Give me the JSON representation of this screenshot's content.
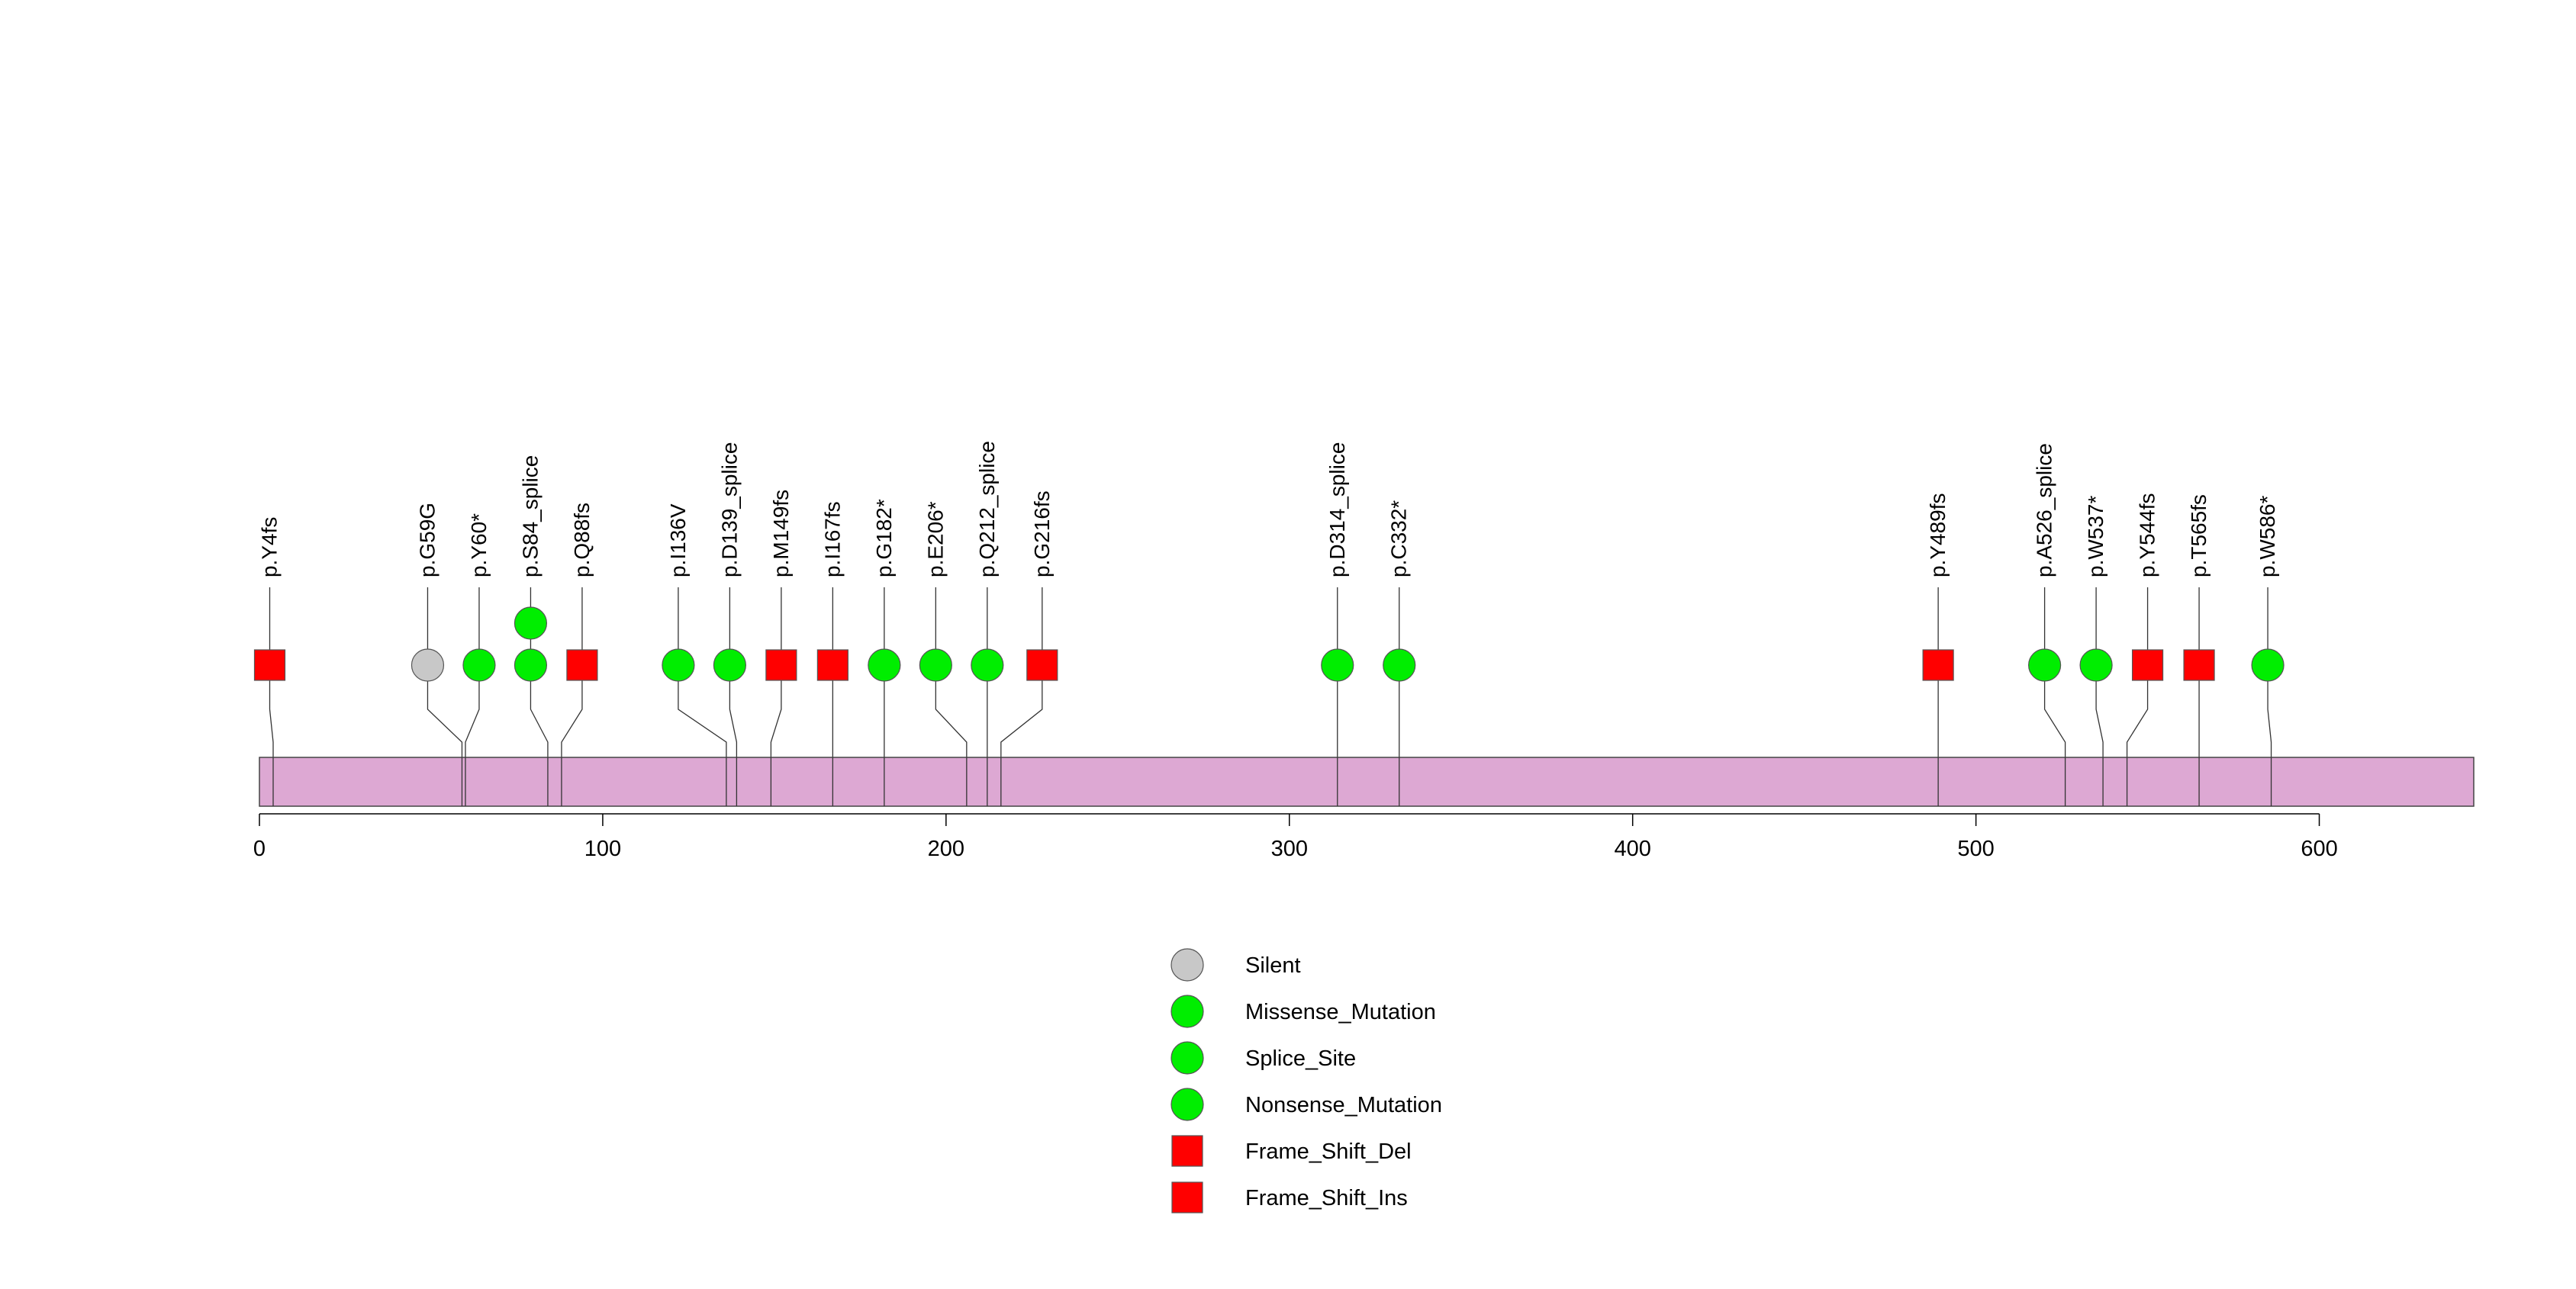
{
  "chart_data": {
    "type": "lollipop",
    "title": "",
    "xlabel": "",
    "ylabel": "",
    "xlim": [
      0,
      645
    ],
    "protein_length": 645,
    "x_ticks": [
      0,
      100,
      200,
      300,
      400,
      500,
      600
    ],
    "x_tick_labels": [
      "0",
      "100",
      "200",
      "300",
      "400",
      "500",
      "600"
    ],
    "grid": false,
    "legend_position": "bottom-center",
    "domain_color": "#dda8d3",
    "mutation_types": [
      {
        "name": "Silent",
        "shape": "circle",
        "color": "#c8c8c8"
      },
      {
        "name": "Missense_Mutation",
        "shape": "circle",
        "color": "#00ee00"
      },
      {
        "name": "Splice_Site",
        "shape": "circle",
        "color": "#00ee00"
      },
      {
        "name": "Nonsense_Mutation",
        "shape": "circle",
        "color": "#00ee00"
      },
      {
        "name": "Frame_Shift_Del",
        "shape": "square",
        "color": "#ff0000"
      },
      {
        "name": "Frame_Shift_Ins",
        "shape": "square",
        "color": "#ff0000"
      }
    ],
    "mutations": [
      {
        "label": "p.Y4fs",
        "position": 4,
        "display_position": 3,
        "count": 1,
        "type": "Frame_Shift_Del"
      },
      {
        "label": "p.G59G",
        "position": 59,
        "display_position": 49,
        "count": 1,
        "type": "Silent"
      },
      {
        "label": "p.Y60*",
        "position": 60,
        "display_position": 64,
        "count": 1,
        "type": "Nonsense_Mutation"
      },
      {
        "label": "p.S84_splice",
        "position": 84,
        "display_position": 79,
        "count": 2,
        "type": "Splice_Site"
      },
      {
        "label": "p.Q88fs",
        "position": 88,
        "display_position": 94,
        "count": 1,
        "type": "Frame_Shift_Del"
      },
      {
        "label": "p.I136V",
        "position": 136,
        "display_position": 122,
        "count": 1,
        "type": "Missense_Mutation"
      },
      {
        "label": "p.D139_splice",
        "position": 139,
        "display_position": 137,
        "count": 1,
        "type": "Splice_Site"
      },
      {
        "label": "p.M149fs",
        "position": 149,
        "display_position": 152,
        "count": 1,
        "type": "Frame_Shift_Ins"
      },
      {
        "label": "p.I167fs",
        "position": 167,
        "display_position": 167,
        "count": 1,
        "type": "Frame_Shift_Del"
      },
      {
        "label": "p.G182*",
        "position": 182,
        "display_position": 182,
        "count": 1,
        "type": "Nonsense_Mutation"
      },
      {
        "label": "p.E206*",
        "position": 206,
        "display_position": 197,
        "count": 1,
        "type": "Nonsense_Mutation"
      },
      {
        "label": "p.Q212_splice",
        "position": 212,
        "display_position": 212,
        "count": 1,
        "type": "Splice_Site"
      },
      {
        "label": "p.G216fs",
        "position": 216,
        "display_position": 228,
        "count": 1,
        "type": "Frame_Shift_Del"
      },
      {
        "label": "p.D314_splice",
        "position": 314,
        "display_position": 314,
        "count": 1,
        "type": "Splice_Site"
      },
      {
        "label": "p.C332*",
        "position": 332,
        "display_position": 332,
        "count": 1,
        "type": "Nonsense_Mutation"
      },
      {
        "label": "p.Y489fs",
        "position": 489,
        "display_position": 489,
        "count": 1,
        "type": "Frame_Shift_Del"
      },
      {
        "label": "p.A526_splice",
        "position": 526,
        "display_position": 520,
        "count": 1,
        "type": "Splice_Site"
      },
      {
        "label": "p.W537*",
        "position": 537,
        "display_position": 535,
        "count": 1,
        "type": "Nonsense_Mutation"
      },
      {
        "label": "p.Y544fs",
        "position": 544,
        "display_position": 550,
        "count": 1,
        "type": "Frame_Shift_Del"
      },
      {
        "label": "p.T565fs",
        "position": 565,
        "display_position": 565,
        "count": 1,
        "type": "Frame_Shift_Del"
      },
      {
        "label": "p.W586*",
        "position": 586,
        "display_position": 585,
        "count": 1,
        "type": "Nonsense_Mutation"
      }
    ]
  }
}
